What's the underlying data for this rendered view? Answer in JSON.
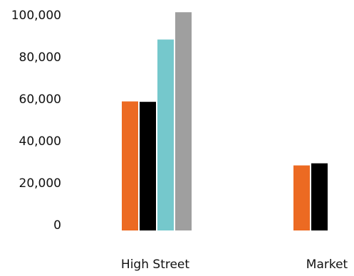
{
  "chart_data": {
    "type": "bar",
    "title": "",
    "xlabel": "",
    "ylabel": "",
    "categories": [
      "High Street",
      "Market"
    ],
    "y_ticks": [
      "0",
      "20,000",
      "40,000",
      "60,000",
      "80,000",
      "100,000"
    ],
    "ylim": [
      0,
      105000
    ],
    "grid": false,
    "legend": "none",
    "series": [
      {
        "color": "#ec6a22",
        "values": [
          61500,
          31000
        ]
      },
      {
        "color": "#000000",
        "values": [
          61300,
          32000
        ]
      },
      {
        "color": "#75c8cc",
        "values": [
          91000,
          null
        ]
      },
      {
        "color": "#9f9f9f",
        "values": [
          104000,
          null
        ]
      }
    ]
  }
}
